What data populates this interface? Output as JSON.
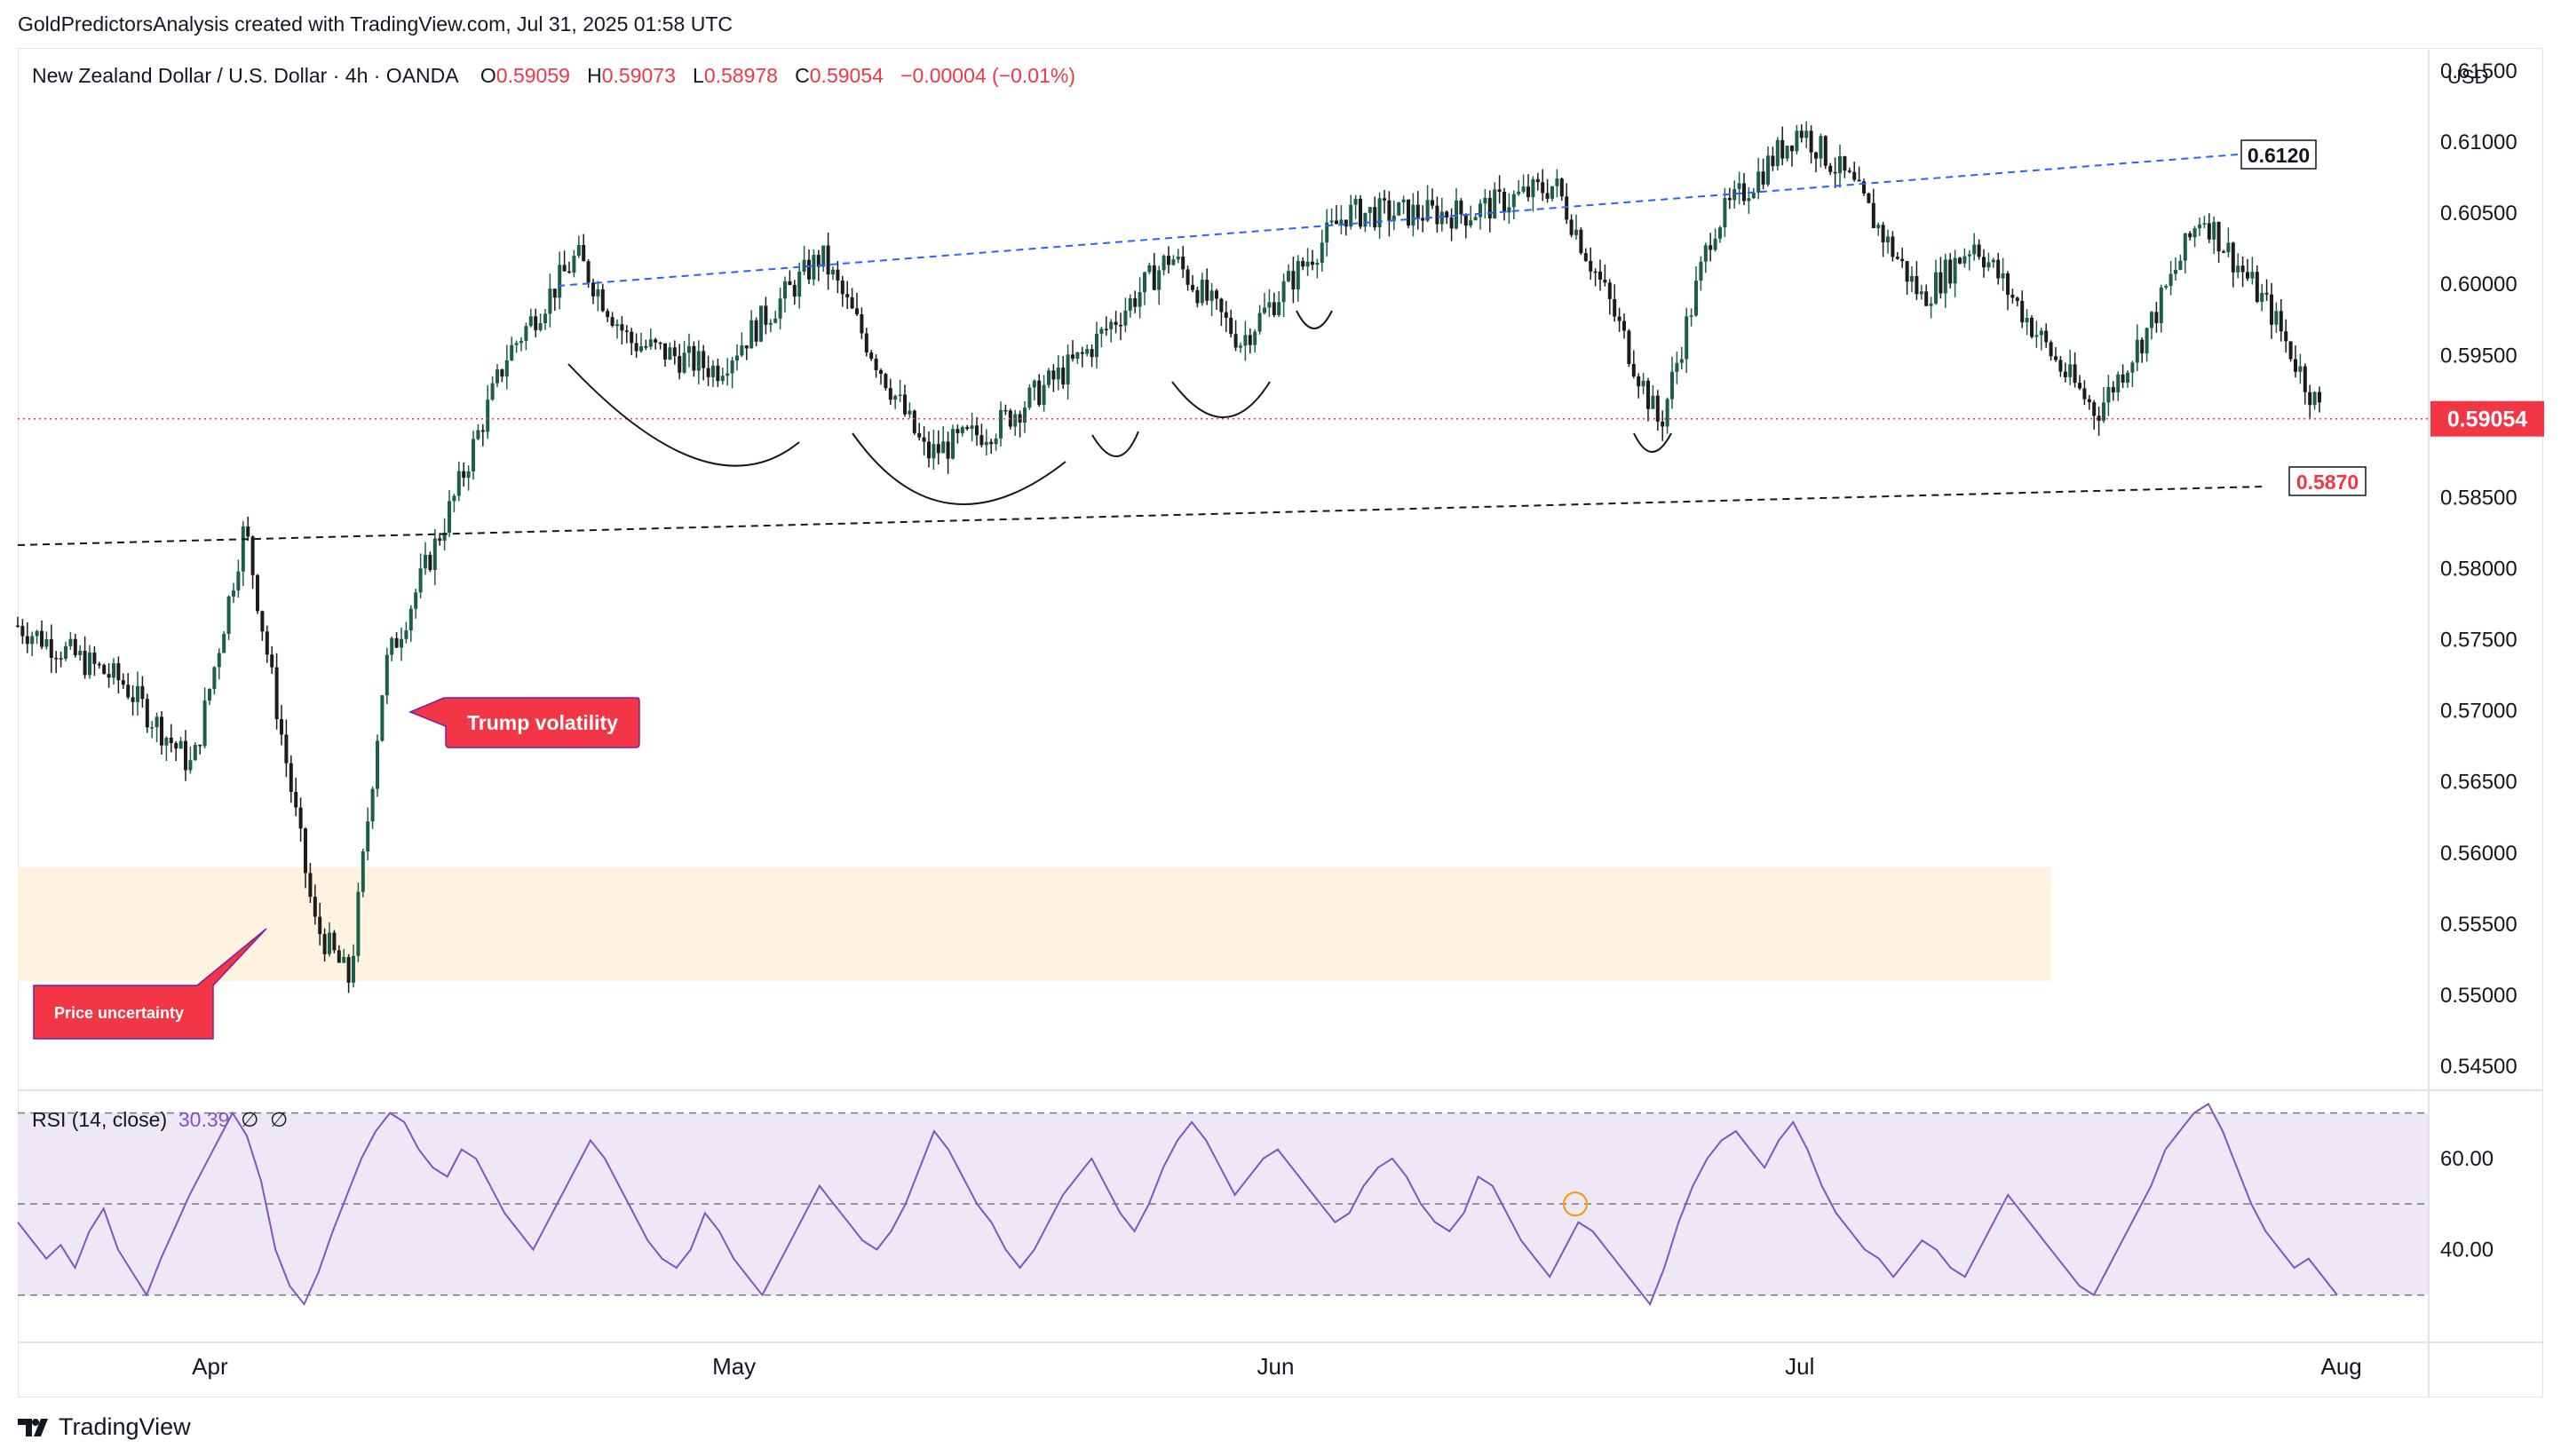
{
  "attribution": "GoldPredictorsAnalysis created with TradingView.com, Jul 31, 2025 01:58 UTC",
  "header": {
    "symbol": "New Zealand Dollar / U.S. Dollar · 4h · OANDA",
    "open_label": "O",
    "open": "0.59059",
    "high_label": "H",
    "high": "0.59073",
    "low_label": "L",
    "low": "0.58978",
    "close_label": "C",
    "close": "0.59054",
    "change": "−0.00004 (−0.01%)"
  },
  "price_axis": {
    "currency": "USD",
    "ticks": [
      "0.61500",
      "0.61000",
      "0.60500",
      "0.60000",
      "0.59500",
      "0.58500",
      "0.58000",
      "0.57500",
      "0.57000",
      "0.56500",
      "0.56000",
      "0.55500",
      "0.55000",
      "0.54500"
    ],
    "current_price_label": "0.59054"
  },
  "rsi": {
    "legend": "RSI (14, close)",
    "value": "30.39",
    "extra1": "∅",
    "extra2": "∅",
    "ticks": [
      "60.00",
      "40.00"
    ]
  },
  "time_axis": {
    "ticks": [
      "Apr",
      "May",
      "Jun",
      "Jul",
      "Aug"
    ]
  },
  "annotations": {
    "resistance_label": "0.6120",
    "support_label": "0.5870",
    "callout_trump": "Trump volatility",
    "callout_uncertainty": "Price uncertainty"
  },
  "branding": "TradingView",
  "colors": {
    "up": "#089981",
    "down": "#f23645",
    "candle_body_up": "#1b5e4b",
    "candle_body_down": "#1c1c1c",
    "resistance_line": "#2962ff",
    "support_line": "#131722",
    "rsi_line": "#7e57c2",
    "rsi_band": "#ede7f6",
    "zone": "#fff3e0",
    "callout": "#f23645"
  },
  "chart_data": {
    "type": "candlestick",
    "title": "New Zealand Dollar / U.S. Dollar · 4h · OANDA",
    "ylim": [
      0.5435,
      0.6165
    ],
    "y_unit": "USD",
    "resistance_line": {
      "value_end": 0.612
    },
    "support_line": {
      "value_end": 0.587
    },
    "demand_zone": {
      "from": 0.551,
      "to": 0.559
    },
    "last_price": 0.59054,
    "price_path": [
      {
        "date": "2025-03-21",
        "close": 0.576
      },
      {
        "date": "2025-03-27",
        "close": 0.572
      },
      {
        "date": "2025-03-31",
        "close": 0.566
      },
      {
        "date": "2025-04-03",
        "close": 0.583
      },
      {
        "date": "2025-04-07",
        "close": 0.555
      },
      {
        "date": "2025-04-09",
        "close": 0.551
      },
      {
        "date": "2025-04-11",
        "close": 0.573
      },
      {
        "date": "2025-04-15",
        "close": 0.585
      },
      {
        "date": "2025-04-18",
        "close": 0.595
      },
      {
        "date": "2025-04-22",
        "close": 0.602
      },
      {
        "date": "2025-04-25",
        "close": 0.596
      },
      {
        "date": "2025-04-30",
        "close": 0.594
      },
      {
        "date": "2025-05-06",
        "close": 0.602
      },
      {
        "date": "2025-05-12",
        "close": 0.588
      },
      {
        "date": "2025-05-16",
        "close": 0.59
      },
      {
        "date": "2025-05-21",
        "close": 0.595
      },
      {
        "date": "2025-05-26",
        "close": 0.602
      },
      {
        "date": "2025-05-30",
        "close": 0.596
      },
      {
        "date": "2025-06-05",
        "close": 0.605
      },
      {
        "date": "2025-06-12",
        "close": 0.605
      },
      {
        "date": "2025-06-17",
        "close": 0.607
      },
      {
        "date": "2025-06-20",
        "close": 0.599
      },
      {
        "date": "2025-06-23",
        "close": 0.59
      },
      {
        "date": "2025-06-26",
        "close": 0.604
      },
      {
        "date": "2025-07-01",
        "close": 0.611
      },
      {
        "date": "2025-07-04",
        "close": 0.607
      },
      {
        "date": "2025-07-08",
        "close": 0.599
      },
      {
        "date": "2025-07-11",
        "close": 0.603
      },
      {
        "date": "2025-07-16",
        "close": 0.594
      },
      {
        "date": "2025-07-18",
        "close": 0.591
      },
      {
        "date": "2025-07-21",
        "close": 0.597
      },
      {
        "date": "2025-07-24",
        "close": 0.605
      },
      {
        "date": "2025-07-28",
        "close": 0.598
      },
      {
        "date": "2025-07-31",
        "close": 0.5905
      }
    ],
    "rsi_series": {
      "name": "RSI (14, close)",
      "ylim": [
        20,
        75
      ],
      "levels": [
        70,
        50,
        30
      ],
      "values": [
        46,
        42,
        38,
        41,
        36,
        44,
        49,
        40,
        35,
        30,
        38,
        45,
        52,
        58,
        64,
        70,
        65,
        55,
        40,
        32,
        28,
        35,
        44,
        52,
        60,
        66,
        70,
        68,
        62,
        58,
        56,
        62,
        60,
        54,
        48,
        44,
        40,
        46,
        52,
        58,
        64,
        60,
        54,
        48,
        42,
        38,
        36,
        40,
        48,
        44,
        38,
        34,
        30,
        36,
        42,
        48,
        54,
        50,
        46,
        42,
        40,
        44,
        50,
        58,
        66,
        62,
        56,
        50,
        46,
        40,
        36,
        40,
        46,
        52,
        56,
        60,
        54,
        48,
        44,
        50,
        58,
        64,
        68,
        64,
        58,
        52,
        56,
        60,
        62,
        58,
        54,
        50,
        46,
        48,
        54,
        58,
        60,
        56,
        50,
        46,
        44,
        48,
        56,
        54,
        48,
        42,
        38,
        34,
        40,
        46,
        44,
        40,
        36,
        32,
        28,
        36,
        46,
        54,
        60,
        64,
        66,
        62,
        58,
        64,
        68,
        62,
        54,
        48,
        44,
        40,
        38,
        34,
        38,
        42,
        40,
        36,
        34,
        40,
        46,
        52,
        48,
        44,
        40,
        36,
        32,
        30,
        36,
        42,
        48,
        54,
        62,
        66,
        70,
        72,
        66,
        58,
        50,
        44,
        40,
        36,
        38,
        34,
        30
      ]
    }
  }
}
